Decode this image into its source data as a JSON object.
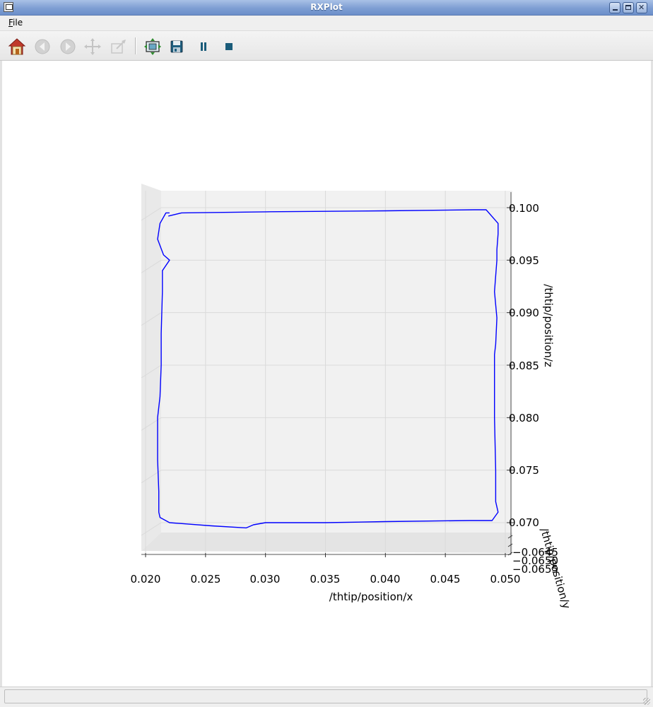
{
  "window": {
    "title": "RXPlot"
  },
  "menu": {
    "file_label": "File",
    "file_mnemonic": "F",
    "file_rest": "ile"
  },
  "toolbar": {
    "buttons": [
      {
        "name": "home-icon",
        "enabled": true
      },
      {
        "name": "back-icon",
        "enabled": false
      },
      {
        "name": "forward-icon",
        "enabled": false
      },
      {
        "name": "pan-icon",
        "enabled": false
      },
      {
        "name": "zoom-icon",
        "enabled": false
      },
      {
        "name": "configure-subplots-icon",
        "enabled": true
      },
      {
        "name": "save-icon",
        "enabled": true
      },
      {
        "name": "pause-icon",
        "enabled": true
      },
      {
        "name": "stop-icon",
        "enabled": true
      }
    ],
    "colors": {
      "home_roof": "#c0392b",
      "play_controls": "#1a5c7a",
      "disabled": "#c4c4c4"
    }
  },
  "chart_data": {
    "type": "line",
    "projection": "3d",
    "title": "",
    "xlabel": "/thtip/position/x",
    "ylabel": "/thtip/position/y",
    "zlabel": "/thtip/position/z",
    "xlim": [
      0.0195,
      0.0505
    ],
    "zlim": [
      0.0685,
      0.1013
    ],
    "x_ticks": [
      "0.020",
      "0.025",
      "0.030",
      "0.035",
      "0.040",
      "0.045",
      "0.050"
    ],
    "z_ticks": [
      "0.070",
      "0.075",
      "0.080",
      "0.085",
      "0.090",
      "0.095",
      "0.100"
    ],
    "y_ticks": [
      "−0.0645",
      "−0.0650",
      "−0.0655"
    ],
    "line_color": "#0000ff",
    "grid": true,
    "series": [
      {
        "name": "/thtip/position",
        "x": [
          0.0219,
          0.023,
          0.03,
          0.04,
          0.0474,
          0.0484,
          0.0494,
          0.0494,
          0.0493,
          0.0493,
          0.0491,
          0.0493,
          0.0492,
          0.0491,
          0.0491,
          0.0491,
          0.0492,
          0.0492,
          0.0494,
          0.0489,
          0.047,
          0.04,
          0.035,
          0.03,
          0.029,
          0.0284,
          0.0255,
          0.022,
          0.0212,
          0.0211,
          0.0211,
          0.021,
          0.021,
          0.0212,
          0.0213,
          0.0213,
          0.0214,
          0.0214,
          0.022,
          0.0215,
          0.021,
          0.0212,
          0.0217,
          0.022
        ],
        "z": [
          0.0992,
          0.0995,
          0.0996,
          0.0997,
          0.0998,
          0.0998,
          0.0985,
          0.0975,
          0.096,
          0.095,
          0.092,
          0.0895,
          0.087,
          0.086,
          0.085,
          0.08,
          0.075,
          0.072,
          0.071,
          0.0702,
          0.0702,
          0.0701,
          0.07,
          0.07,
          0.0698,
          0.0695,
          0.0697,
          0.07,
          0.0705,
          0.071,
          0.073,
          0.076,
          0.08,
          0.082,
          0.085,
          0.088,
          0.092,
          0.094,
          0.095,
          0.0955,
          0.097,
          0.0985,
          0.0995,
          0.0995
        ]
      }
    ]
  }
}
